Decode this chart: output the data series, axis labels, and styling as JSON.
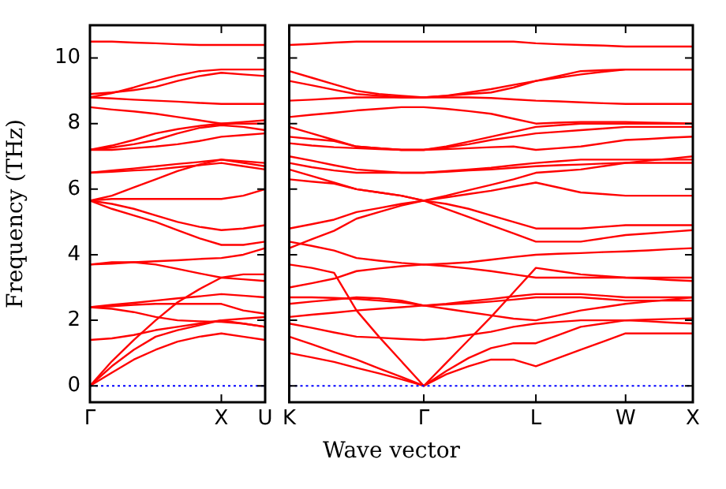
{
  "chart_data": [
    {
      "type": "line",
      "ylabel": "Frequency (THz)",
      "xlabel": "Wave vector",
      "ylim": [
        -0.5,
        11
      ],
      "categories": [
        "Γ",
        null,
        null,
        null,
        null,
        null,
        "X",
        null,
        "U"
      ],
      "yticks": [
        0,
        2,
        4,
        6,
        8,
        10
      ],
      "grid": false,
      "legend": false,
      "marker": "none",
      "line_style": "solid",
      "ref_lines": [
        {
          "axis": "y",
          "value": 0,
          "color": "#0000ff",
          "line_style": "dotted"
        }
      ],
      "series": [
        {
          "color": "#ff0000",
          "values": [
            0,
            0.4,
            0.8,
            1.1,
            1.35,
            1.5,
            1.6,
            1.5,
            1.4
          ]
        },
        {
          "color": "#ff0000",
          "values": [
            0,
            0.6,
            1.1,
            1.5,
            1.7,
            1.85,
            2.0,
            1.9,
            1.8
          ]
        },
        {
          "color": "#ff0000",
          "values": [
            0,
            0.75,
            1.4,
            2.0,
            2.55,
            2.95,
            3.3,
            3.4,
            3.4
          ]
        },
        {
          "color": "#ff0000",
          "values": [
            1.4,
            1.45,
            1.55,
            1.7,
            1.8,
            1.9,
            2.0,
            2.05,
            2.1
          ]
        },
        {
          "color": "#ff0000",
          "values": [
            2.4,
            2.47,
            2.53,
            2.6,
            2.67,
            2.73,
            2.8,
            2.75,
            2.7
          ]
        },
        {
          "color": "#ff0000",
          "values": [
            2.4,
            2.35,
            2.25,
            2.1,
            2.0,
            1.97,
            1.95,
            1.9,
            1.8
          ]
        },
        {
          "color": "#ff0000",
          "values": [
            2.4,
            2.43,
            2.47,
            2.5,
            2.5,
            2.5,
            2.5,
            2.3,
            2.2
          ]
        },
        {
          "color": "#ff0000",
          "values": [
            3.7,
            3.73,
            3.77,
            3.8,
            3.83,
            3.87,
            3.9,
            4.0,
            4.2
          ]
        },
        {
          "color": "#ff0000",
          "values": [
            3.7,
            3.77,
            3.77,
            3.7,
            3.57,
            3.43,
            3.3,
            3.25,
            3.2
          ]
        },
        {
          "color": "#ff0000",
          "values": [
            5.65,
            5.4,
            5.2,
            5.0,
            4.75,
            4.5,
            4.3,
            4.3,
            4.4
          ]
        },
        {
          "color": "#ff0000",
          "values": [
            5.65,
            5.55,
            5.4,
            5.2,
            5.0,
            4.85,
            4.75,
            4.8,
            4.9
          ]
        },
        {
          "color": "#ff0000",
          "values": [
            5.65,
            5.7,
            5.7,
            5.7,
            5.7,
            5.7,
            5.7,
            5.8,
            6.0
          ]
        },
        {
          "color": "#ff0000",
          "values": [
            5.65,
            5.8,
            6.05,
            6.3,
            6.55,
            6.75,
            6.9,
            6.8,
            6.7
          ]
        },
        {
          "color": "#ff0000",
          "values": [
            6.5,
            6.57,
            6.63,
            6.7,
            6.77,
            6.83,
            6.9,
            6.85,
            6.8
          ]
        },
        {
          "color": "#ff0000",
          "values": [
            6.5,
            6.53,
            6.57,
            6.6,
            6.67,
            6.73,
            6.8,
            6.7,
            6.6
          ]
        },
        {
          "color": "#ff0000",
          "values": [
            7.2,
            7.33,
            7.5,
            7.7,
            7.83,
            7.93,
            8.0,
            8.0,
            8.0
          ]
        },
        {
          "color": "#ff0000",
          "values": [
            7.2,
            7.27,
            7.37,
            7.5,
            7.7,
            7.87,
            7.95,
            7.9,
            7.8
          ]
        },
        {
          "color": "#ff0000",
          "values": [
            7.2,
            7.2,
            7.25,
            7.3,
            7.37,
            7.47,
            7.6,
            7.65,
            7.7
          ]
        },
        {
          "color": "#ff0000",
          "values": [
            8.5,
            8.43,
            8.37,
            8.3,
            8.2,
            8.1,
            8.0,
            8.05,
            8.1
          ]
        },
        {
          "color": "#ff0000",
          "values": [
            8.8,
            8.93,
            9.1,
            9.3,
            9.47,
            9.6,
            9.65,
            9.65,
            9.65
          ]
        },
        {
          "color": "#ff0000",
          "values": [
            8.8,
            8.77,
            8.73,
            8.7,
            8.67,
            8.63,
            8.6,
            8.6,
            8.6
          ]
        },
        {
          "color": "#ff0000",
          "values": [
            8.9,
            8.95,
            9.02,
            9.12,
            9.3,
            9.45,
            9.55,
            9.5,
            9.45
          ]
        },
        {
          "color": "#ff0000",
          "values": [
            10.5,
            10.5,
            10.47,
            10.45,
            10.42,
            10.4,
            10.4,
            10.4,
            10.4
          ]
        }
      ]
    },
    {
      "type": "line",
      "ylim": [
        -0.5,
        11
      ],
      "categories": [
        "K",
        null,
        null,
        null,
        null,
        null,
        "Γ",
        null,
        null,
        null,
        null,
        "L",
        null,
        null,
        null,
        "W",
        null,
        null,
        "X"
      ],
      "yticks": [
        0,
        2,
        4,
        6,
        8,
        10
      ],
      "tick_labels": "x",
      "grid": false,
      "legend": false,
      "marker": "none",
      "line_style": "solid",
      "ref_lines": [
        {
          "axis": "y",
          "value": 0,
          "color": "#0000ff",
          "line_style": "dotted"
        }
      ],
      "series": [
        {
          "color": "#ff0000",
          "values": [
            1.0,
            0.87,
            0.73,
            0.55,
            0.38,
            0.2,
            0,
            0.35,
            0.6,
            0.8,
            0.8,
            0.6,
            0.85,
            1.1,
            1.35,
            1.6,
            1.6,
            1.6,
            1.6
          ]
        },
        {
          "color": "#ff0000",
          "values": [
            1.5,
            1.27,
            1.03,
            0.8,
            0.53,
            0.27,
            0,
            0.45,
            0.85,
            1.15,
            1.3,
            1.3,
            1.55,
            1.8,
            1.9,
            2.0,
            1.97,
            1.93,
            1.9
          ]
        },
        {
          "color": "#ff0000",
          "values": [
            3.7,
            3.6,
            3.45,
            2.3,
            1.5,
            0.75,
            0,
            0.7,
            1.4,
            2.1,
            2.85,
            3.6,
            3.5,
            3.4,
            3.35,
            3.3,
            3.27,
            3.23,
            3.2
          ]
        },
        {
          "color": "#ff0000",
          "values": [
            1.9,
            1.77,
            1.63,
            1.5,
            1.47,
            1.43,
            1.4,
            1.45,
            1.55,
            1.65,
            1.8,
            1.9,
            1.95,
            2.0,
            2.0,
            2.0,
            2.02,
            2.04,
            2.06
          ]
        },
        {
          "color": "#ff0000",
          "values": [
            2.1,
            2.17,
            2.23,
            2.3,
            2.35,
            2.4,
            2.45,
            2.48,
            2.52,
            2.57,
            2.63,
            2.7,
            2.7,
            2.7,
            2.65,
            2.6,
            2.6,
            2.6,
            2.6
          ]
        },
        {
          "color": "#ff0000",
          "values": [
            2.5,
            2.57,
            2.63,
            2.7,
            2.67,
            2.6,
            2.45,
            2.5,
            2.58,
            2.65,
            2.73,
            2.8,
            2.8,
            2.8,
            2.75,
            2.7,
            2.7,
            2.7,
            2.7
          ]
        },
        {
          "color": "#ff0000",
          "values": [
            2.7,
            2.7,
            2.68,
            2.65,
            2.6,
            2.55,
            2.45,
            2.35,
            2.25,
            2.15,
            2.05,
            2.0,
            2.15,
            2.3,
            2.4,
            2.5,
            2.57,
            2.63,
            2.7
          ]
        },
        {
          "color": "#ff0000",
          "values": [
            4.4,
            4.27,
            4.13,
            3.9,
            3.82,
            3.75,
            3.7,
            3.73,
            3.77,
            3.85,
            3.93,
            4.0,
            4.03,
            4.05,
            4.08,
            4.1,
            4.13,
            4.17,
            4.2
          ]
        },
        {
          "color": "#ff0000",
          "values": [
            3.0,
            3.13,
            3.27,
            3.5,
            3.58,
            3.65,
            3.7,
            3.65,
            3.58,
            3.5,
            3.4,
            3.3,
            3.3,
            3.3,
            3.3,
            3.3,
            3.3,
            3.3,
            3.3
          ]
        },
        {
          "color": "#ff0000",
          "values": [
            4.2,
            4.47,
            4.73,
            5.1,
            5.3,
            5.5,
            5.65,
            5.4,
            5.15,
            4.9,
            4.65,
            4.4,
            4.4,
            4.4,
            4.5,
            4.6,
            4.65,
            4.7,
            4.75
          ]
        },
        {
          "color": "#ff0000",
          "values": [
            4.8,
            4.93,
            5.07,
            5.3,
            5.42,
            5.55,
            5.65,
            5.55,
            5.4,
            5.2,
            5.0,
            4.8,
            4.8,
            4.8,
            4.85,
            4.9,
            4.9,
            4.9,
            4.9
          ]
        },
        {
          "color": "#ff0000",
          "values": [
            6.6,
            6.4,
            6.2,
            6.0,
            5.9,
            5.8,
            5.65,
            5.75,
            5.85,
            5.95,
            6.08,
            6.2,
            6.05,
            5.9,
            5.85,
            5.8,
            5.8,
            5.8,
            5.8
          ]
        },
        {
          "color": "#ff0000",
          "values": [
            6.3,
            6.23,
            6.17,
            6.0,
            5.9,
            5.8,
            5.65,
            5.8,
            5.97,
            6.13,
            6.3,
            6.5,
            6.55,
            6.6,
            6.7,
            6.8,
            6.8,
            6.8,
            6.8
          ]
        },
        {
          "color": "#ff0000",
          "values": [
            7.0,
            6.87,
            6.73,
            6.6,
            6.55,
            6.5,
            6.5,
            6.55,
            6.6,
            6.65,
            6.73,
            6.8,
            6.85,
            6.9,
            6.9,
            6.9,
            6.9,
            6.9,
            6.9
          ]
        },
        {
          "color": "#ff0000",
          "values": [
            6.8,
            6.67,
            6.57,
            6.5,
            6.5,
            6.5,
            6.5,
            6.53,
            6.57,
            6.6,
            6.65,
            6.7,
            6.73,
            6.75,
            6.78,
            6.8,
            6.87,
            6.93,
            7.0
          ]
        },
        {
          "color": "#ff0000",
          "values": [
            7.9,
            7.7,
            7.5,
            7.3,
            7.25,
            7.2,
            7.2,
            7.3,
            7.45,
            7.6,
            7.75,
            7.9,
            7.95,
            8.0,
            8.0,
            8.0,
            8.0,
            8.0,
            8.0
          ]
        },
        {
          "color": "#ff0000",
          "values": [
            7.6,
            7.53,
            7.47,
            7.3,
            7.25,
            7.2,
            7.2,
            7.27,
            7.37,
            7.5,
            7.6,
            7.7,
            7.75,
            7.8,
            7.85,
            7.9,
            7.9,
            7.9,
            7.9
          ]
        },
        {
          "color": "#ff0000",
          "values": [
            7.4,
            7.33,
            7.28,
            7.25,
            7.22,
            7.2,
            7.2,
            7.22,
            7.25,
            7.28,
            7.3,
            7.2,
            7.25,
            7.3,
            7.4,
            7.5,
            7.53,
            7.57,
            7.6
          ]
        },
        {
          "color": "#ff0000",
          "values": [
            8.2,
            8.27,
            8.33,
            8.4,
            8.45,
            8.5,
            8.5,
            8.45,
            8.38,
            8.3,
            8.15,
            8.0,
            8.03,
            8.05,
            8.05,
            8.05,
            8.03,
            8.02,
            8.0
          ]
        },
        {
          "color": "#ff0000",
          "values": [
            9.3,
            9.17,
            9.03,
            8.9,
            8.85,
            8.8,
            8.8,
            8.85,
            8.95,
            9.05,
            9.18,
            9.3,
            9.4,
            9.5,
            9.58,
            9.65,
            9.65,
            9.65,
            9.65
          ]
        },
        {
          "color": "#ff0000",
          "values": [
            8.7,
            8.73,
            8.77,
            8.8,
            8.8,
            8.8,
            8.8,
            8.8,
            8.8,
            8.78,
            8.74,
            8.7,
            8.68,
            8.65,
            8.62,
            8.6,
            8.6,
            8.6,
            8.6
          ]
        },
        {
          "color": "#ff0000",
          "values": [
            9.6,
            9.4,
            9.2,
            9.0,
            8.9,
            8.85,
            8.8,
            8.85,
            8.9,
            8.95,
            9.1,
            9.3,
            9.45,
            9.6,
            9.63,
            9.65,
            9.65,
            9.65,
            9.65
          ]
        },
        {
          "color": "#ff0000",
          "values": [
            10.4,
            10.43,
            10.47,
            10.5,
            10.5,
            10.5,
            10.5,
            10.5,
            10.5,
            10.5,
            10.5,
            10.45,
            10.42,
            10.4,
            10.38,
            10.35,
            10.35,
            10.35,
            10.35
          ]
        }
      ]
    }
  ]
}
